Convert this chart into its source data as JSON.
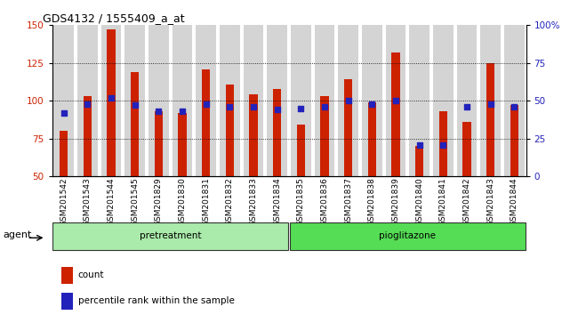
{
  "title": "GDS4132 / 1555409_a_at",
  "samples": [
    "GSM201542",
    "GSM201543",
    "GSM201544",
    "GSM201545",
    "GSM201829",
    "GSM201830",
    "GSM201831",
    "GSM201832",
    "GSM201833",
    "GSM201834",
    "GSM201835",
    "GSM201836",
    "GSM201837",
    "GSM201838",
    "GSM201839",
    "GSM201840",
    "GSM201841",
    "GSM201842",
    "GSM201843",
    "GSM201844"
  ],
  "count_values": [
    80,
    103,
    147,
    119,
    93,
    92,
    121,
    111,
    104,
    108,
    84,
    103,
    114,
    99,
    132,
    70,
    93,
    86,
    125,
    97
  ],
  "percentile_values": [
    42,
    48,
    52,
    47,
    43,
    43,
    48,
    46,
    46,
    44,
    45,
    46,
    50,
    48,
    50,
    21,
    21,
    46,
    48,
    46
  ],
  "group_labels": [
    "pretreatment",
    "pioglitazone"
  ],
  "group_split": 10,
  "bar_color": "#CC2200",
  "dot_color": "#2222BB",
  "ylim_left": [
    50,
    150
  ],
  "ylim_right": [
    0,
    100
  ],
  "yticks_left": [
    50,
    75,
    100,
    125,
    150
  ],
  "yticks_right": [
    0,
    25,
    50,
    75,
    100
  ],
  "ytick_labels_right": [
    "0",
    "25",
    "50",
    "75",
    "100%"
  ],
  "grid_values": [
    75,
    100,
    125
  ],
  "col_bg_color": "#D4D4D4",
  "bar_width": 0.35,
  "agent_label": "agent",
  "legend_count": "count",
  "legend_pct": "percentile rank within the sample"
}
